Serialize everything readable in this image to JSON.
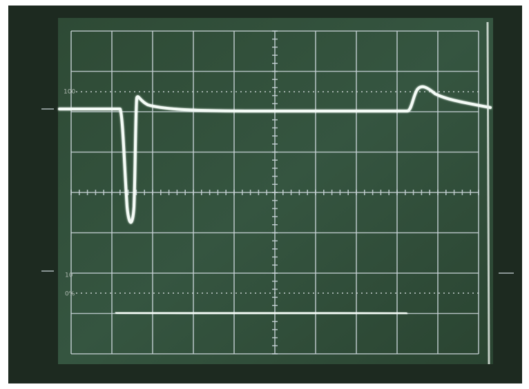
{
  "graticule_labels": {
    "top": "100",
    "middle": "10",
    "bottom": "0%"
  }
}
